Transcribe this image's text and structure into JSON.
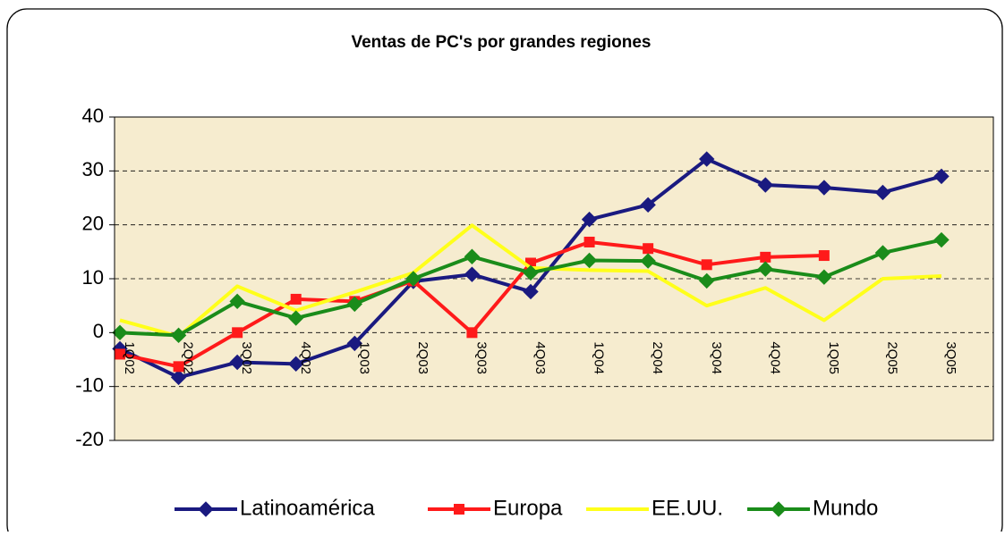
{
  "chart_data": {
    "type": "line",
    "title": "Ventas de PC's por grandes regiones",
    "categories": [
      "1Q02",
      "2Q02",
      "3Q02",
      "4Q02",
      "1Q03",
      "2Q03",
      "3Q03",
      "4Q03",
      "1Q04",
      "2Q04",
      "3Q04",
      "4Q04",
      "1Q05",
      "2Q05",
      "3Q05"
    ],
    "series": [
      {
        "name": "Latinoamérica",
        "color": "#1a1a80",
        "marker": "diamond",
        "values": [
          -3,
          -8.3,
          -5.5,
          -5.8,
          -2,
          9.5,
          10.8,
          7.6,
          21,
          23.7,
          32.2,
          27.4,
          26.9,
          26,
          29
        ]
      },
      {
        "name": "Europa",
        "color": "#ff1a1a",
        "marker": "square",
        "values": [
          -4,
          -6.3,
          0,
          6.2,
          5.8,
          9.6,
          0,
          12.9,
          16.8,
          15.6,
          12.6,
          14,
          14.3,
          null,
          null
        ]
      },
      {
        "name": "EE.UU.",
        "color": "#ffff1a",
        "marker": "none",
        "values": [
          2.3,
          -0.7,
          8.6,
          4.1,
          7.5,
          11.1,
          19.9,
          12,
          11.6,
          11.4,
          5,
          8.3,
          2.3,
          10,
          10.5
        ]
      },
      {
        "name": "Mundo",
        "color": "#1a8c1a",
        "marker": "diamond",
        "values": [
          0,
          -0.5,
          5.8,
          2.7,
          5.3,
          10,
          14.1,
          11.1,
          13.4,
          13.3,
          9.6,
          11.8,
          10.3,
          14.8,
          17.2
        ]
      }
    ],
    "ylim": [
      -20,
      40
    ],
    "yticks": [
      -20,
      -10,
      0,
      10,
      20,
      30,
      40
    ],
    "grid": true,
    "legend": "bottom"
  }
}
